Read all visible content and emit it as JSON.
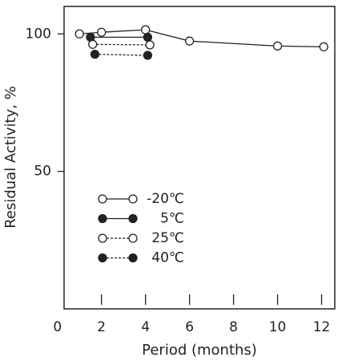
{
  "chart_data": {
    "type": "line",
    "x_label": "Period (months)",
    "y_label": "Residual Activity, %",
    "xlim": [
      0.3,
      12.6
    ],
    "ylim": [
      0,
      110
    ],
    "xticks": [
      0,
      2,
      4,
      6,
      8,
      10,
      12
    ],
    "yticks": [
      50,
      100
    ],
    "series": [
      {
        "name": "-20℃",
        "color": "#222",
        "marker": "open",
        "dash": false,
        "x": [
          1,
          2,
          4,
          6,
          10,
          12.1
        ],
        "values": [
          100,
          100.6,
          101.5,
          97.4,
          95.6,
          95.3
        ]
      },
      {
        "name": "5℃",
        "color": "#222",
        "marker": "filled",
        "dash": false,
        "x": [
          1.5,
          4.1
        ],
        "values": [
          98.8,
          98.8
        ]
      },
      {
        "name": "25℃",
        "color": "#222",
        "marker": "open",
        "dash": true,
        "x": [
          1.6,
          4.2
        ],
        "values": [
          96.2,
          96
        ]
      },
      {
        "name": "40℃",
        "color": "#222",
        "marker": "filled",
        "dash": true,
        "x": [
          1.7,
          4.1
        ],
        "values": [
          92.6,
          92.2
        ]
      }
    ]
  }
}
